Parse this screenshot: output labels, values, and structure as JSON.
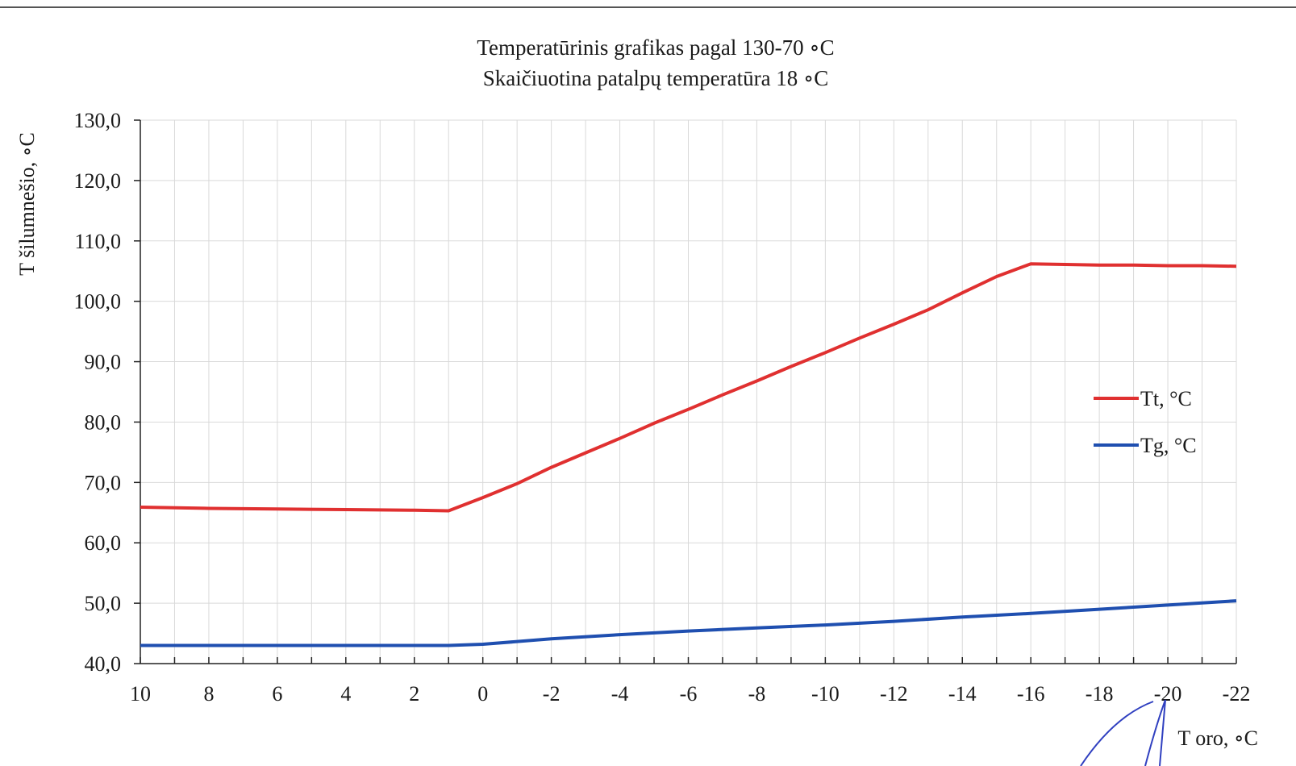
{
  "chart_data": {
    "type": "line",
    "title": "Temperatūrinis grafikas pagal 130-70 ∘C",
    "subtitle": "Skaičiuotina patalpų temperatūra 18 ∘C",
    "xlabel": "T oro, ∘C",
    "ylabel": "T šilumnešio, ∘C",
    "x_reversed": true,
    "xlim": [
      10,
      -22
    ],
    "ylim": [
      40,
      130
    ],
    "x_ticks": [
      10,
      8,
      6,
      4,
      2,
      0,
      -2,
      -4,
      -6,
      -8,
      -10,
      -12,
      -14,
      -16,
      -18,
      -20,
      -22
    ],
    "x_tick_labels": [
      "10",
      "8",
      "6",
      "4",
      "2",
      "0",
      "-2",
      "-4",
      "-6",
      "-8",
      "-10",
      "-12",
      "-14",
      "-16",
      "-18",
      "-20",
      "-22"
    ],
    "y_ticks": [
      40,
      50,
      60,
      70,
      80,
      90,
      100,
      110,
      120,
      130
    ],
    "y_tick_labels": [
      "40,0",
      "50,0",
      "60,0",
      "70,0",
      "80,0",
      "90,0",
      "100,0",
      "110,0",
      "120,0",
      "130,0"
    ],
    "grid": true,
    "legend_position": "right",
    "series": [
      {
        "name": "Tt, °C",
        "color": "#e03030",
        "x": [
          10,
          8,
          6,
          4,
          2,
          1,
          0,
          -1,
          -2,
          -3,
          -4,
          -5,
          -6,
          -7,
          -8,
          -9,
          -10,
          -11,
          -12,
          -13,
          -14,
          -15,
          -16,
          -17,
          -18,
          -19,
          -20,
          -21,
          -22
        ],
        "y": [
          65.9,
          65.7,
          65.6,
          65.5,
          65.4,
          65.3,
          67.5,
          69.8,
          72.5,
          74.9,
          77.3,
          79.8,
          82.1,
          84.5,
          86.8,
          89.2,
          91.5,
          93.9,
          96.2,
          98.6,
          101.4,
          104.1,
          106.2,
          106.1,
          106.0,
          106.0,
          105.9,
          105.9,
          105.8
        ]
      },
      {
        "name": "Tg, °C",
        "color": "#1f4fb0",
        "x": [
          10,
          8,
          6,
          4,
          2,
          1,
          0,
          -2,
          -4,
          -6,
          -8,
          -10,
          -12,
          -14,
          -16,
          -18,
          -20,
          -22
        ],
        "y": [
          43.0,
          43.0,
          43.0,
          43.0,
          43.0,
          43.0,
          43.2,
          44.1,
          44.8,
          45.4,
          45.9,
          46.4,
          47.0,
          47.7,
          48.3,
          49.0,
          49.7,
          50.4
        ]
      }
    ]
  }
}
